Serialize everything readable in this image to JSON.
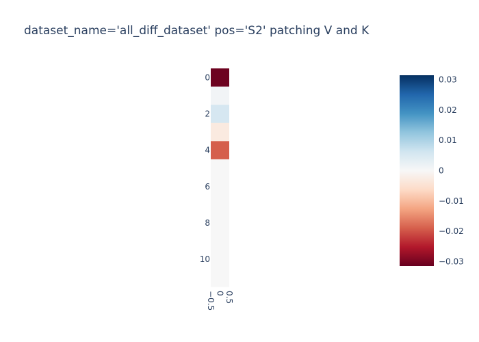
{
  "chart_data": {
    "type": "heatmap",
    "title": "dataset_name='all_diff_dataset' pos='S2' patching V and K",
    "xlabel": "",
    "ylabel": "",
    "x_categories": [
      0
    ],
    "y_categories": [
      0,
      1,
      2,
      3,
      4,
      5,
      6,
      7,
      8,
      9,
      10,
      11
    ],
    "values": [
      [
        -0.031
      ],
      [
        0.001
      ],
      [
        0.0055
      ],
      [
        -0.003
      ],
      [
        -0.019
      ],
      [
        0.0
      ],
      [
        0.0
      ],
      [
        0.0
      ],
      [
        0.0
      ],
      [
        0.0
      ],
      [
        0.0
      ],
      [
        0.0
      ]
    ],
    "x_ticks": [
      "−0.5",
      "0",
      "0.5"
    ],
    "y_ticks": [
      "0",
      "2",
      "4",
      "6",
      "8",
      "10"
    ],
    "colorscale": "RdBu",
    "zmin": -0.0315,
    "zmax": 0.0315,
    "colorbar_ticks": [
      "0.03",
      "0.02",
      "0.01",
      "0",
      "−0.01",
      "−0.02",
      "−0.03"
    ],
    "colorbar_tick_values": [
      0.03,
      0.02,
      0.01,
      0,
      -0.01,
      -0.02,
      -0.03
    ],
    "colors": {
      "background": "#ffffff",
      "text": "#2a3f5f"
    }
  }
}
